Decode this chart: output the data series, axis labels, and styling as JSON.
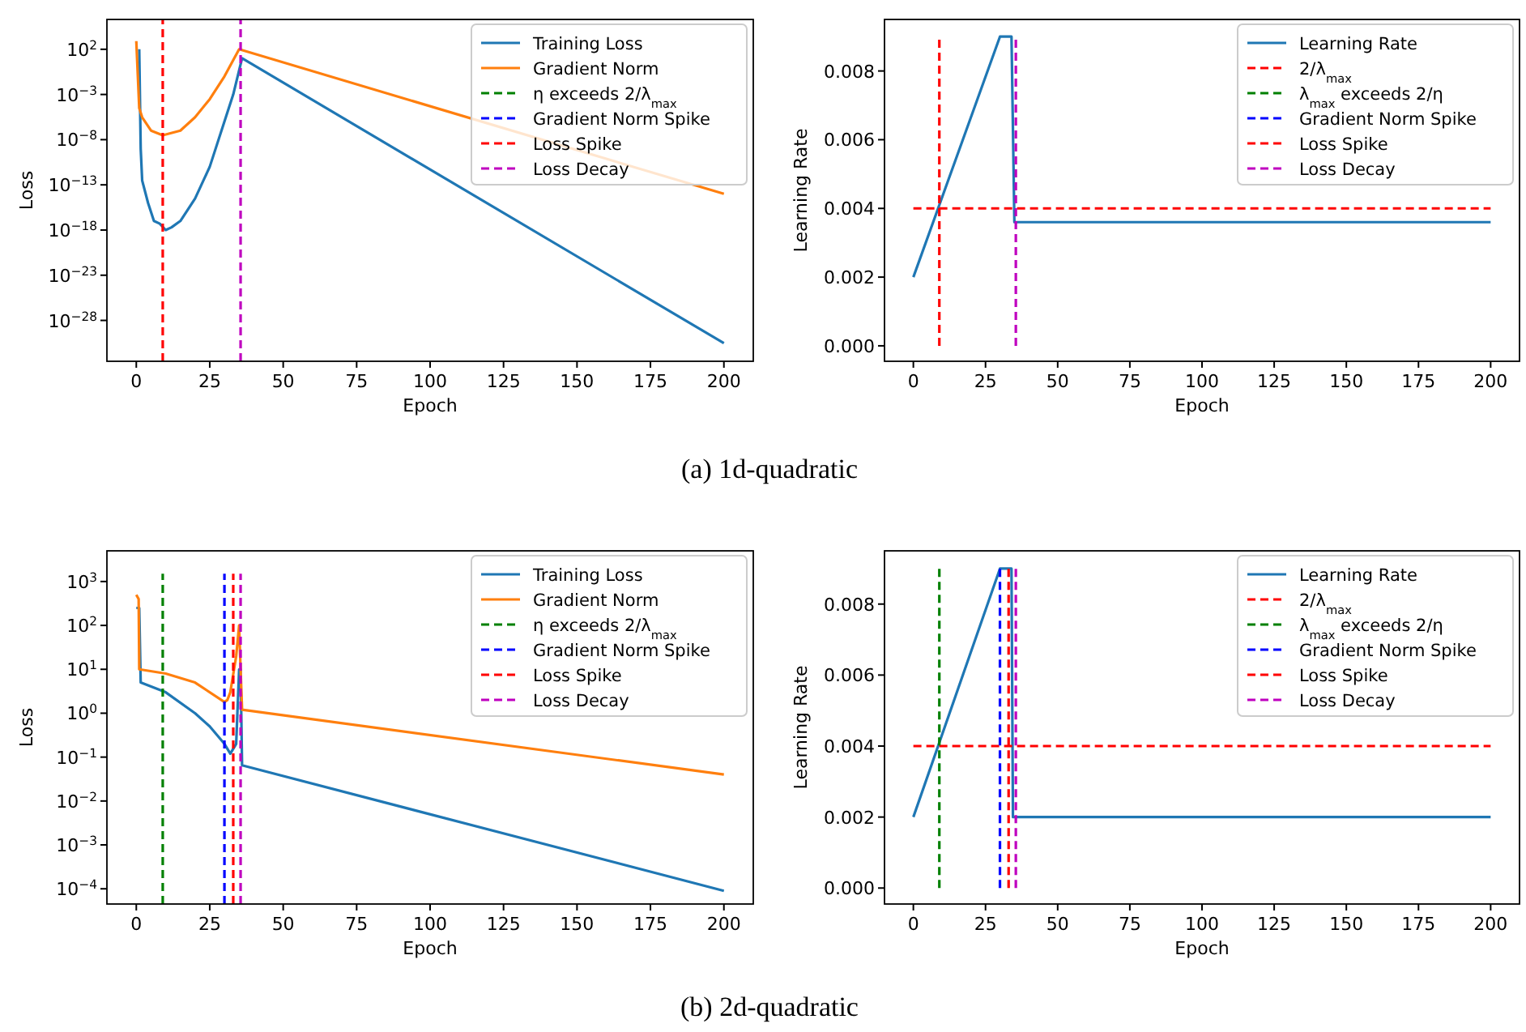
{
  "chart_data": [
    {
      "type": "line",
      "xlabel": "Epoch",
      "ylabel": "Loss",
      "log": "y",
      "legend": "top right",
      "xlim": [
        -10,
        210
      ],
      "ylim": [
        3e-33,
        200000
      ],
      "xticks": [
        0,
        25,
        50,
        75,
        100,
        125,
        150,
        175,
        200
      ],
      "yticks": [
        {
          "value": 100,
          "label": "10$^{2}$"
        },
        {
          "value": 0.001,
          "label": "10$^{−3}$"
        },
        {
          "value": 1e-08,
          "label": "10$^{−8}$"
        },
        {
          "value": 1e-13,
          "label": "10$^{−13}$"
        },
        {
          "value": 1e-18,
          "label": "10$^{−18}$"
        },
        {
          "value": 1e-23,
          "label": "10$^{−23}$"
        },
        {
          "value": 1e-28,
          "label": "10$^{−28}$"
        }
      ],
      "annotations": [
        "(a) 1d-quadratic"
      ],
      "series": [
        {
          "name": "Training Loss",
          "color": "#1f77b4",
          "x": [
            1,
            1.5,
            2,
            4,
            6,
            8,
            10,
            12,
            15,
            20,
            25,
            30,
            33,
            36,
            200
          ],
          "values": [
            100,
            1e-09,
            3e-13,
            1e-15,
            1e-17,
            5e-18,
            1e-18,
            2e-18,
            1e-17,
            3e-15,
            1e-11,
            1e-06,
            0.001,
            10,
            3e-31
          ]
        },
        {
          "name": "Gradient Norm",
          "color": "#ff7f0e",
          "x": [
            0,
            1,
            2,
            5,
            9,
            15,
            20,
            25,
            30,
            35,
            200
          ],
          "values": [
            800,
            3e-05,
            3e-06,
            1e-07,
            3e-08,
            1e-07,
            3e-06,
            0.0003,
            0.1,
            100,
            1e-14
          ]
        },
        {
          "name": "η exceeds 2/λ$_{max}$",
          "color": "#008000",
          "line_style": "dashed"
        },
        {
          "name": "Gradient Norm Spike",
          "color": "#0000ff",
          "line_style": "dashed"
        },
        {
          "name": "Loss Spike",
          "color": "#ff0000",
          "line_style": "dashed",
          "x": [
            9,
            9
          ],
          "values": [
            3e-33,
            200000
          ]
        },
        {
          "name": "Loss Decay",
          "color": "#bf00bf",
          "line_style": "dashed",
          "x": [
            35.5,
            35.5
          ],
          "values": [
            3e-33,
            200000
          ]
        }
      ]
    },
    {
      "type": "line",
      "xlabel": "Epoch",
      "ylabel": "Learning Rate",
      "legend": "top right",
      "xlim": [
        -10,
        210
      ],
      "ylim": [
        -0.00045,
        0.0095
      ],
      "xticks": [
        0,
        25,
        50,
        75,
        100,
        125,
        150,
        175,
        200
      ],
      "yticks": [
        {
          "value": 0,
          "label": "0.000"
        },
        0.002,
        0.004,
        0.006,
        0.008
      ],
      "series": [
        {
          "name": "Learning Rate",
          "color": "#1f77b4",
          "x": [
            0,
            30,
            34,
            35,
            200
          ],
          "values": [
            0.002,
            0.009,
            0.009,
            0.0036,
            0.0036
          ]
        },
        {
          "name": "2/λ$_{max}$",
          "color": "#ff0000",
          "line_style": "dashed",
          "x": [
            0,
            200
          ],
          "values": [
            0.004,
            0.004
          ]
        },
        {
          "name": "λ$_{max}$ exceeds 2/η",
          "color": "#008000",
          "line_style": "dashed"
        },
        {
          "name": "Gradient Norm Spike",
          "color": "#0000ff",
          "line_style": "dashed"
        },
        {
          "name": "Loss Spike",
          "color": "#ff0000",
          "line_style": "dashed",
          "x": [
            9,
            9
          ],
          "values": [
            0,
            0.009
          ]
        },
        {
          "name": "Loss Decay",
          "color": "#bf00bf",
          "line_style": "dashed",
          "x": [
            35.5,
            35.5
          ],
          "values": [
            0,
            0.009
          ]
        }
      ]
    },
    {
      "type": "line",
      "xlabel": "Epoch",
      "ylabel": "Loss",
      "log": "y",
      "legend": "top right",
      "xlim": [
        -10,
        210
      ],
      "ylim": [
        4.5e-05,
        5000
      ],
      "xticks": [
        0,
        25,
        50,
        75,
        100,
        125,
        150,
        175,
        200
      ],
      "yticks": [
        {
          "value": 1000,
          "label": "10$^{3}$"
        },
        {
          "value": 100,
          "label": "10$^{2}$"
        },
        {
          "value": 10,
          "label": "10$^{1}$"
        },
        {
          "value": 1,
          "label": "10$^{0}$"
        },
        {
          "value": 0.1,
          "label": "10$^{−1}$"
        },
        {
          "value": 0.01,
          "label": "10$^{−2}$"
        },
        {
          "value": 0.001,
          "label": "10$^{−3}$"
        },
        {
          "value": 0.0001,
          "label": "10$^{−4}$"
        }
      ],
      "annotations": [
        "(b) 2d-quadratic"
      ],
      "series": [
        {
          "name": "Training Loss",
          "color": "#1f77b4",
          "x": [
            0,
            1,
            1.5,
            10,
            20,
            25,
            30,
            32,
            34,
            35,
            35.5,
            36,
            200
          ],
          "values": [
            250,
            250,
            5,
            3,
            1,
            0.5,
            0.2,
            0.12,
            0.2,
            10,
            10,
            0.065,
            9e-05
          ]
        },
        {
          "name": "Gradient Norm",
          "color": "#ff7f0e",
          "x": [
            0,
            0.8,
            1,
            10,
            20,
            30,
            31,
            32,
            34,
            35,
            35.5,
            36,
            200
          ],
          "values": [
            500,
            400,
            10,
            8,
            5,
            1.8,
            2,
            3,
            20,
            100,
            10,
            1.2,
            0.04
          ]
        },
        {
          "name": "η exceeds 2/λ$_{max}$",
          "color": "#008000",
          "line_style": "dashed",
          "x": [
            9,
            9
          ],
          "values": [
            4.5e-05,
            1500
          ]
        },
        {
          "name": "Gradient Norm Spike",
          "color": "#0000ff",
          "line_style": "dashed",
          "x": [
            30,
            30
          ],
          "values": [
            4.5e-05,
            1500
          ]
        },
        {
          "name": "Loss Spike",
          "color": "#ff0000",
          "line_style": "dashed",
          "x": [
            33,
            33
          ],
          "values": [
            4.5e-05,
            1500
          ]
        },
        {
          "name": "Loss Decay",
          "color": "#bf00bf",
          "line_style": "dashed",
          "x": [
            35.5,
            35.5
          ],
          "values": [
            4.5e-05,
            1500
          ]
        }
      ]
    },
    {
      "type": "line",
      "xlabel": "Epoch",
      "ylabel": "Learning Rate",
      "legend": "top right",
      "xlim": [
        -10,
        210
      ],
      "ylim": [
        -0.00045,
        0.0095
      ],
      "xticks": [
        0,
        25,
        50,
        75,
        100,
        125,
        150,
        175,
        200
      ],
      "yticks": [
        {
          "value": 0,
          "label": "0.000"
        },
        0.002,
        0.004,
        0.006,
        0.008
      ],
      "series": [
        {
          "name": "Learning Rate",
          "color": "#1f77b4",
          "x": [
            0,
            30,
            34,
            34.5,
            200
          ],
          "values": [
            0.002,
            0.009,
            0.009,
            0.002,
            0.002
          ]
        },
        {
          "name": "2/λ$_{max}$",
          "color": "#ff0000",
          "line_style": "dashed",
          "x": [
            0,
            200
          ],
          "values": [
            0.004,
            0.004
          ]
        },
        {
          "name": "λ$_{max}$ exceeds 2/η",
          "color": "#008000",
          "line_style": "dashed",
          "x": [
            9,
            9
          ],
          "values": [
            0,
            0.009
          ]
        },
        {
          "name": "Gradient Norm Spike",
          "color": "#0000ff",
          "line_style": "dashed",
          "x": [
            30,
            30
          ],
          "values": [
            0,
            0.009
          ]
        },
        {
          "name": "Loss Spike",
          "color": "#ff0000",
          "line_style": "dashed",
          "x": [
            33,
            33
          ],
          "values": [
            0,
            0.009
          ]
        },
        {
          "name": "Loss Decay",
          "color": "#bf00bf",
          "line_style": "dashed",
          "x": [
            35.5,
            35.5
          ],
          "values": [
            0,
            0.009
          ]
        }
      ]
    }
  ]
}
